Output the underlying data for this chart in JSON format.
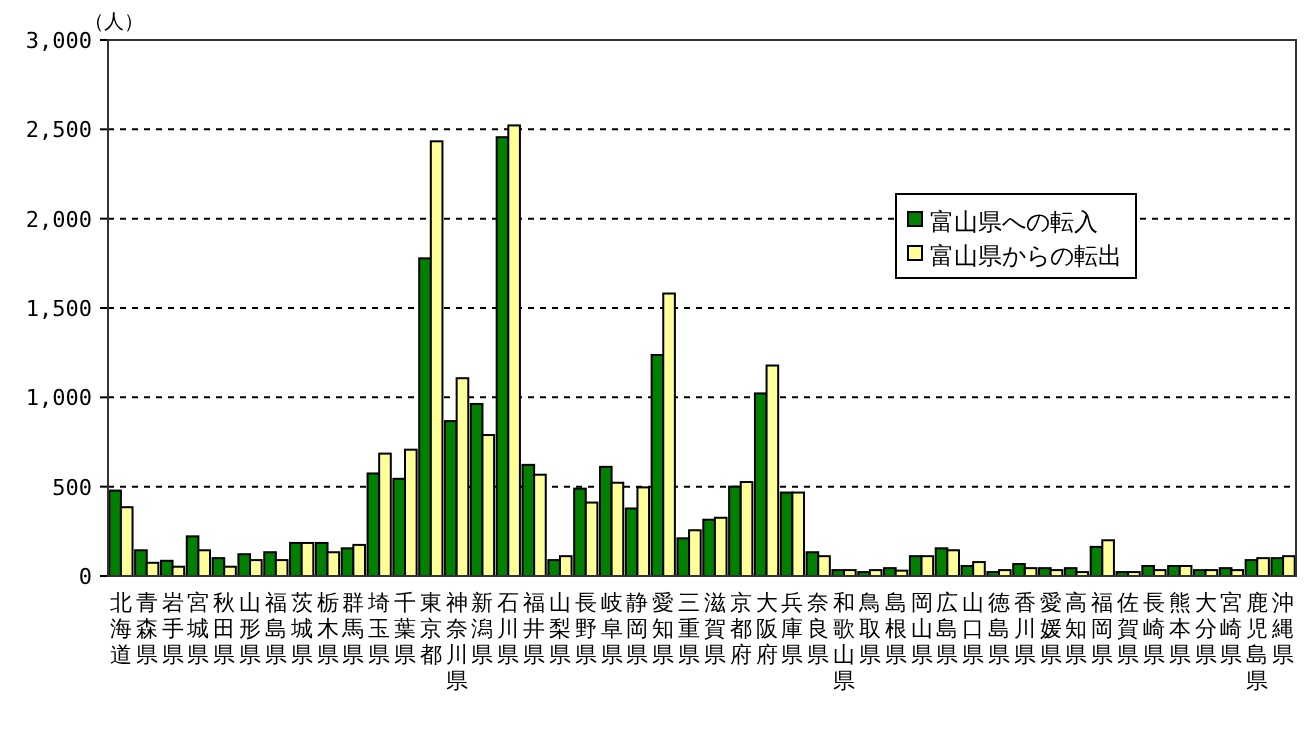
{
  "chart_data": {
    "type": "bar",
    "ylabel": "（人）",
    "categories": [
      "北海道",
      "青森県",
      "岩手県",
      "宮城県",
      "秋田県",
      "山形県",
      "福島県",
      "茨城県",
      "栃木県",
      "群馬県",
      "埼玉県",
      "千葉県",
      "東京都",
      "神奈川県",
      "新潟県",
      "石川県",
      "福井県",
      "山梨県",
      "長野県",
      "岐阜県",
      "静岡県",
      "愛知県",
      "三重県",
      "滋賀県",
      "京都府",
      "大阪府",
      "兵庫県",
      "奈良県",
      "和歌山県",
      "鳥取県",
      "島根県",
      "岡山県",
      "広島県",
      "山口県",
      "徳島県",
      "香川県",
      "愛媛県",
      "高知県",
      "福岡県",
      "佐賀県",
      "長崎県",
      "熊本県",
      "大分県",
      "宮崎県",
      "鹿児島県",
      "沖縄県"
    ],
    "series": [
      {
        "name": "富山県への転入",
        "color": "#008000",
        "values": [
          478,
          144,
          85,
          222,
          100,
          122,
          133,
          185,
          185,
          155,
          574,
          544,
          1778,
          867,
          963,
          2456,
          622,
          89,
          489,
          611,
          378,
          1237,
          211,
          315,
          500,
          1022,
          467,
          133,
          33,
          22,
          44,
          111,
          155,
          56,
          22,
          67,
          44,
          44,
          163,
          22,
          56,
          56,
          33,
          44,
          89,
          100
        ]
      },
      {
        "name": "富山県からの転出",
        "color": "#ffff99",
        "values": [
          385,
          74,
          52,
          144,
          52,
          89,
          89,
          185,
          133,
          174,
          685,
          707,
          2433,
          1107,
          789,
          2522,
          567,
          111,
          411,
          522,
          496,
          1581,
          256,
          326,
          526,
          1178,
          467,
          111,
          33,
          33,
          30,
          111,
          144,
          78,
          33,
          44,
          33,
          22,
          200,
          22,
          33,
          56,
          33,
          33,
          100,
          111
        ]
      }
    ],
    "ylim": [
      0,
      3000
    ],
    "yticks": [
      {
        "value": 0,
        "label": "0"
      },
      {
        "value": 500,
        "label": "500"
      },
      {
        "value": 1000,
        "label": "1,000"
      },
      {
        "value": 1500,
        "label": "1,500"
      },
      {
        "value": 2000,
        "label": "2,000"
      },
      {
        "value": 2500,
        "label": "2,500"
      },
      {
        "value": 3000,
        "label": "3,000"
      }
    ],
    "grid": "y",
    "legend": "top right"
  }
}
